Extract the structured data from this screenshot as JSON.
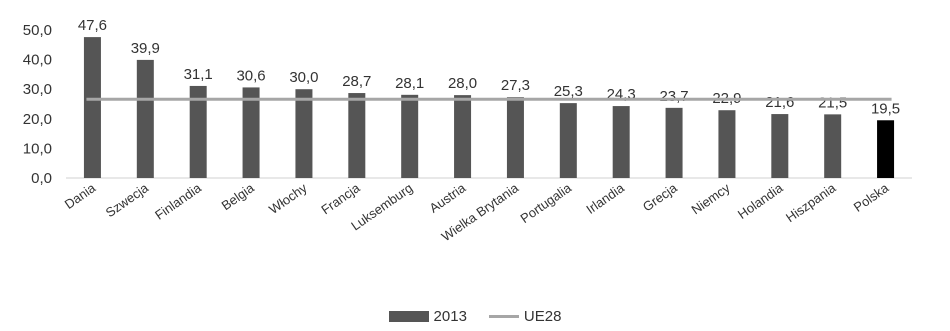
{
  "chart_data": {
    "type": "bar",
    "categories": [
      "Dania",
      "Szwecja",
      "Finlandia",
      "Belgia",
      "Włochy",
      "Francja",
      "Luksemburg",
      "Austria",
      "Wielka Brytania",
      "Portugalia",
      "Irlandia",
      "Grecja",
      "Niemcy",
      "Holandia",
      "Hiszpania",
      "Polska"
    ],
    "series": [
      {
        "name": "2013",
        "type": "bar",
        "values": [
          47.6,
          39.9,
          31.1,
          30.6,
          30.0,
          28.7,
          28.1,
          28.0,
          27.3,
          25.3,
          24.3,
          23.7,
          22.9,
          21.6,
          21.5,
          19.5
        ],
        "value_labels": [
          "47,6",
          "39,9",
          "31,1",
          "30,6",
          "30,0",
          "28,7",
          "28,1",
          "28,0",
          "27,3",
          "25,3",
          "24,3",
          "23,7",
          "22,9",
          "21,6",
          "21,5",
          "19,5"
        ],
        "color": "#555555",
        "highlight_color": "#000000",
        "highlight_category": "Polska"
      },
      {
        "name": "UE28",
        "type": "line",
        "value": 26.6,
        "color": "#a6a6a6"
      }
    ],
    "ylim": [
      0,
      50
    ],
    "yticks": [
      0,
      10,
      20,
      30,
      40,
      50
    ],
    "ytick_labels": [
      "0,0",
      "10,0",
      "20,0",
      "30,0",
      "40,0",
      "50,0"
    ],
    "grid": false,
    "legend_position": "bottom",
    "title": "",
    "xlabel": "",
    "ylabel": ""
  }
}
